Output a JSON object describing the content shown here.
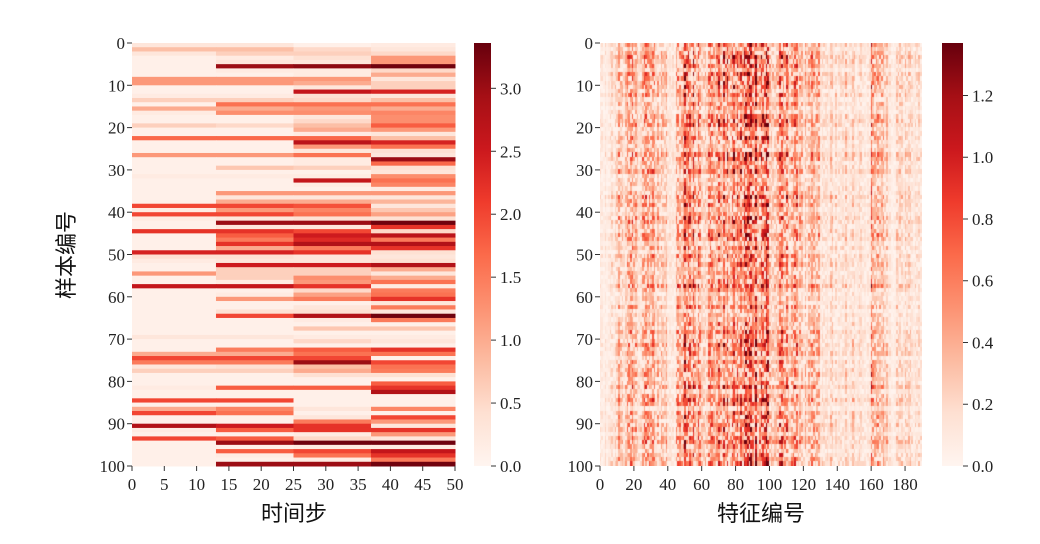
{
  "chart_data": [
    {
      "type": "heatmap",
      "xlabel": "时间步",
      "ylabel": "样本编号",
      "x_ticks": [
        "0",
        "5",
        "10",
        "15",
        "20",
        "25",
        "30",
        "35",
        "40",
        "45",
        "50"
      ],
      "y_ticks": [
        "0",
        "10",
        "20",
        "30",
        "40",
        "50",
        "60",
        "70",
        "80",
        "90",
        "100"
      ],
      "xlim": [
        0,
        50
      ],
      "ylim": [
        100,
        0
      ],
      "colormap": "Reds",
      "colorbar": {
        "min": 0,
        "max": 3.36,
        "ticks": [
          "0.0",
          "0.5",
          "1.0",
          "1.5",
          "2.0",
          "2.5",
          "3.0"
        ]
      },
      "segment_edges": [
        0,
        13,
        25,
        37,
        50
      ],
      "rows": [
        [
          0.3,
          0.3,
          0.1,
          0.2
        ],
        [
          0.8,
          0.8,
          0.5,
          0.3
        ],
        [
          0.3,
          0.6,
          0.6,
          0.5
        ],
        [
          0.1,
          0.2,
          0.4,
          1.2
        ],
        [
          0.1,
          0.3,
          0.3,
          1.2
        ],
        [
          0.1,
          3.0,
          3.1,
          3.3
        ],
        [
          0.1,
          0.2,
          0.2,
          0.5
        ],
        [
          0.1,
          0.1,
          0.2,
          1.0
        ],
        [
          1.2,
          1.2,
          1.2,
          0.3
        ],
        [
          1.2,
          1.2,
          1.0,
          0.6
        ],
        [
          0.1,
          0.1,
          0.3,
          0.6
        ],
        [
          0.1,
          0.1,
          2.6,
          2.4
        ],
        [
          0.2,
          0.2,
          0.4,
          0.3
        ],
        [
          0.6,
          0.6,
          0.5,
          0.8
        ],
        [
          0.1,
          1.6,
          1.6,
          1.6
        ],
        [
          1.0,
          1.0,
          1.2,
          1.0
        ],
        [
          0.2,
          1.3,
          1.3,
          1.4
        ],
        [
          0.1,
          0.1,
          0.3,
          1.3
        ],
        [
          0.1,
          0.1,
          0.5,
          1.3
        ],
        [
          0.6,
          0.5,
          0.8,
          1.8
        ],
        [
          0.1,
          0.1,
          1.0,
          1.2
        ],
        [
          0.1,
          0.1,
          0.2,
          0.3
        ],
        [
          1.7,
          1.7,
          1.7,
          0.8
        ],
        [
          0.1,
          0.1,
          2.7,
          2.4
        ],
        [
          0.1,
          0.1,
          1.2,
          1.6
        ],
        [
          0.1,
          0.1,
          0.3,
          0.4
        ],
        [
          1.2,
          1.2,
          1.6,
          0.3
        ],
        [
          0.1,
          0.1,
          0.2,
          3.0
        ],
        [
          0.1,
          0.1,
          0.2,
          1.7
        ],
        [
          0.1,
          0.7,
          0.6,
          0.4
        ],
        [
          0.1,
          0.1,
          0.1,
          0.3
        ],
        [
          0.2,
          0.2,
          0.2,
          1.3
        ],
        [
          0.1,
          0.1,
          2.6,
          1.6
        ],
        [
          0.1,
          0.1,
          0.2,
          1.4
        ],
        [
          0.1,
          0.1,
          0.1,
          0.2
        ],
        [
          0.1,
          1.2,
          1.2,
          1.2
        ],
        [
          0.1,
          0.3,
          0.3,
          0.3
        ],
        [
          0.1,
          1.0,
          1.0,
          0.9
        ],
        [
          2.0,
          2.0,
          1.9,
          0.3
        ],
        [
          0.2,
          1.2,
          1.4,
          0.7
        ],
        [
          2.0,
          2.0,
          1.6,
          1.1
        ],
        [
          0.2,
          0.3,
          0.4,
          0.4
        ],
        [
          0.1,
          3.0,
          3.0,
          3.3
        ],
        [
          0.1,
          0.3,
          0.3,
          2.2
        ],
        [
          2.2,
          2.2,
          2.0,
          0.5
        ],
        [
          0.1,
          1.8,
          2.5,
          2.7
        ],
        [
          0.1,
          1.5,
          2.3,
          1.5
        ],
        [
          0.1,
          2.2,
          2.8,
          2.8
        ],
        [
          0.1,
          1.0,
          1.5,
          2.2
        ],
        [
          2.4,
          2.4,
          2.2,
          0.4
        ],
        [
          0.4,
          0.4,
          0.3,
          0.3
        ],
        [
          0.2,
          0.3,
          0.3,
          0.4
        ],
        [
          0.1,
          2.5,
          2.5,
          2.8
        ],
        [
          0.1,
          0.6,
          0.6,
          1.0
        ],
        [
          1.2,
          0.6,
          0.6,
          0.3
        ],
        [
          0.1,
          0.6,
          1.3,
          1.0
        ],
        [
          0.1,
          0.2,
          1.2,
          1.6
        ],
        [
          2.6,
          2.6,
          2.2,
          0.2
        ],
        [
          0.1,
          0.1,
          0.5,
          1.5
        ],
        [
          0.1,
          0.2,
          1.1,
          1.6
        ],
        [
          0.1,
          1.2,
          1.5,
          2.2
        ],
        [
          0.1,
          0.1,
          0.1,
          0.3
        ],
        [
          0.1,
          0.1,
          0.3,
          1.5
        ],
        [
          0.1,
          0.4,
          0.4,
          0.3
        ],
        [
          0.1,
          2.0,
          2.8,
          3.3
        ],
        [
          0.1,
          0.1,
          0.2,
          1.5
        ],
        [
          0.1,
          0.1,
          0.1,
          0.1
        ],
        [
          0.1,
          0.1,
          0.7,
          0.7
        ],
        [
          0.1,
          0.1,
          0.1,
          0.1
        ],
        [
          0.3,
          0.3,
          0.2,
          0.2
        ],
        [
          0.1,
          0.1,
          0.5,
          0.3
        ],
        [
          0.1,
          0.1,
          0.1,
          0.1
        ],
        [
          0.1,
          1.5,
          1.8,
          2.2
        ],
        [
          1.0,
          1.0,
          1.6,
          1.6
        ],
        [
          2.0,
          2.0,
          2.0,
          0.1
        ],
        [
          1.5,
          1.5,
          3.0,
          2.0
        ],
        [
          0.3,
          0.4,
          0.8,
          1.6
        ],
        [
          0.6,
          0.6,
          1.0,
          1.5
        ],
        [
          0.1,
          0.1,
          0.4,
          0.4
        ],
        [
          0.1,
          0.1,
          0.1,
          0.1
        ],
        [
          0.1,
          0.1,
          0.1,
          1.8
        ],
        [
          0.2,
          1.8,
          1.8,
          2.2
        ],
        [
          0.1,
          0.1,
          0.1,
          2.8
        ],
        [
          0.1,
          0.1,
          0.1,
          0.1
        ],
        [
          2.0,
          2.0,
          0.1,
          0.1
        ],
        [
          0.1,
          0.1,
          0.1,
          0.1
        ],
        [
          1.0,
          1.4,
          0.3,
          1.4
        ],
        [
          2.0,
          1.6,
          0.1,
          0.1
        ],
        [
          0.1,
          0.1,
          0.3,
          2.0
        ],
        [
          0.1,
          0.1,
          1.5,
          1.2
        ],
        [
          2.8,
          2.5,
          2.2,
          0.3
        ],
        [
          0.2,
          1.8,
          2.2,
          2.2
        ],
        [
          0.1,
          0.1,
          0.2,
          1.2
        ],
        [
          2.0,
          1.8,
          0.5,
          0.3
        ],
        [
          0.1,
          3.0,
          3.3,
          3.3
        ],
        [
          0.1,
          0.1,
          0.2,
          0.2
        ],
        [
          0.1,
          1.8,
          2.0,
          2.6
        ],
        [
          0.1,
          0.2,
          1.6,
          2.2
        ],
        [
          0.1,
          0.1,
          0.2,
          1.5
        ],
        [
          0.1,
          3.0,
          3.0,
          3.3
        ]
      ]
    },
    {
      "type": "heatmap",
      "xlabel": "特征编号",
      "ylabel": "",
      "x_ticks": [
        "0",
        "20",
        "40",
        "60",
        "80",
        "100",
        "120",
        "140",
        "160",
        "180"
      ],
      "y_ticks": [
        "0",
        "10",
        "20",
        "30",
        "40",
        "50",
        "60",
        "70",
        "80",
        "90",
        "100"
      ],
      "xlim": [
        0,
        190
      ],
      "ylim": [
        100,
        0
      ],
      "n_rows": 100,
      "n_features": 190,
      "colormap": "Reds",
      "colorbar": {
        "min": 0,
        "max": 1.37,
        "ticks": [
          "0.0",
          "0.2",
          "0.4",
          "0.6",
          "0.8",
          "1.0",
          "1.2"
        ]
      },
      "feature_bin_width": 5,
      "feature_mean_profile": [
        0.1,
        0.15,
        0.3,
        0.35,
        0.3,
        0.4,
        0.35,
        0.3,
        0.15,
        0.35,
        0.65,
        0.55,
        0.4,
        0.45,
        0.5,
        0.5,
        0.55,
        0.7,
        0.75,
        0.75,
        0.3,
        0.45,
        0.45,
        0.4,
        0.25,
        0.3,
        0.15,
        0.2,
        0.12,
        0.2,
        0.15,
        0.1,
        0.55,
        0.35,
        0.1,
        0.2,
        0.2,
        0.15
      ]
    }
  ]
}
